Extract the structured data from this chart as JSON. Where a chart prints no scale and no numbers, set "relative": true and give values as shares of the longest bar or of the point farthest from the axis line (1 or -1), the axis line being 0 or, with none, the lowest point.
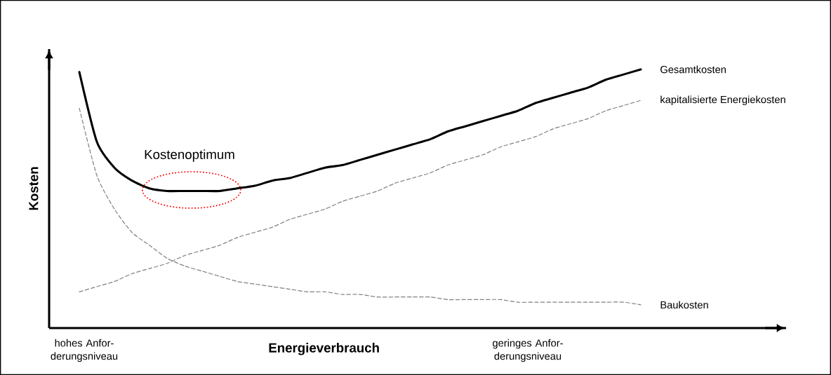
{
  "chart_data": {
    "type": "line",
    "relative": true,
    "xlabel": "Energieverbrauch",
    "ylabel": "Kosten",
    "categories": [
      null,
      null,
      null,
      null,
      null,
      null,
      null,
      null,
      null,
      null,
      null,
      null,
      null,
      null,
      null,
      null,
      null,
      null,
      null,
      null,
      null,
      null,
      null,
      null,
      null,
      null,
      null,
      null,
      null,
      null,
      null,
      null,
      null
    ],
    "series": [
      {
        "name": "Gesamtkosten",
        "color": "#000000",
        "line_style": "solid",
        "values": [
          0.99,
          0.72,
          0.62,
          0.57,
          0.54,
          0.53,
          0.53,
          0.53,
          0.53,
          0.54,
          0.55,
          0.57,
          0.58,
          0.6,
          0.62,
          0.63,
          0.65,
          0.67,
          0.69,
          0.71,
          0.73,
          0.76,
          0.78,
          0.8,
          0.82,
          0.84,
          0.87,
          0.89,
          0.91,
          0.93,
          0.96,
          0.98,
          1.0
        ]
      },
      {
        "name": "kapitalisierte  Energiekosten",
        "color": "#808080",
        "line_style": "dashed",
        "values": [
          0.14,
          0.16,
          0.18,
          0.21,
          0.23,
          0.25,
          0.28,
          0.3,
          0.32,
          0.35,
          0.37,
          0.39,
          0.42,
          0.44,
          0.46,
          0.49,
          0.51,
          0.53,
          0.56,
          0.58,
          0.6,
          0.63,
          0.65,
          0.67,
          0.7,
          0.72,
          0.74,
          0.77,
          0.79,
          0.81,
          0.84,
          0.86,
          0.88
        ]
      },
      {
        "name": "Baukosten",
        "color": "#808080",
        "line_style": "dashed",
        "values": [
          0.85,
          0.59,
          0.46,
          0.37,
          0.32,
          0.27,
          0.24,
          0.22,
          0.2,
          0.18,
          0.17,
          0.16,
          0.15,
          0.14,
          0.14,
          0.13,
          0.13,
          0.12,
          0.12,
          0.12,
          0.12,
          0.11,
          0.11,
          0.11,
          0.11,
          0.1,
          0.1,
          0.1,
          0.1,
          0.1,
          0.1,
          0.1,
          0.09
        ]
      }
    ],
    "annotations": [
      "Kostenoptimum",
      "hohes Anfor-derungsniveau",
      "geringes Anfor-derungsniveau"
    ],
    "marker": "none"
  }
}
